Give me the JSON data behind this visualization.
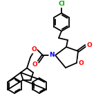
{
  "bg_color": "#ffffff",
  "bond_color": "#000000",
  "atom_colors": {
    "N": "#0000ff",
    "O": "#ff0000",
    "Cl": "#00aa00"
  },
  "lw": 1.3,
  "figsize": [
    1.52,
    1.52
  ],
  "dpi": 100
}
